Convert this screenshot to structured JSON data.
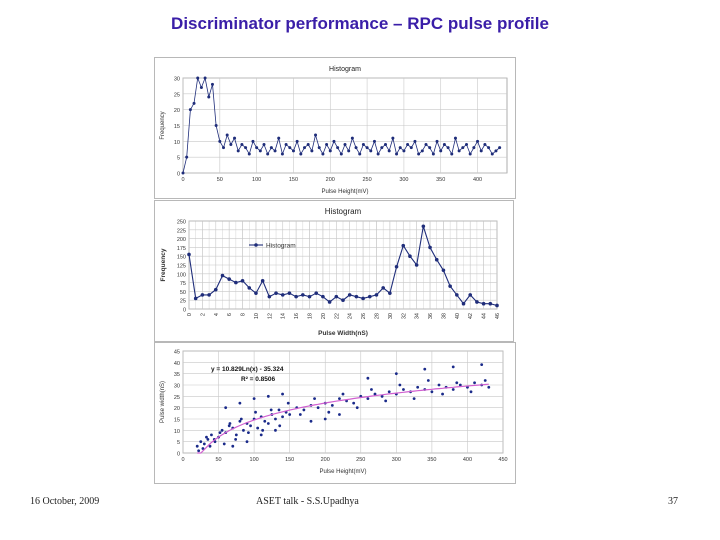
{
  "slide": {
    "title": "Discriminator performance – RPC pulse profile",
    "footer_left": "16 October, 2009",
    "footer_center": "ASET talk -  S.S.Upadhya",
    "footer_right": "37",
    "title_color": "#3a1ea8"
  },
  "chart_data": [
    {
      "type": "line",
      "title": "Histogram",
      "xlabel": "Pulse Height(mV)",
      "ylabel": "Frequency",
      "xlim": [
        0,
        440
      ],
      "ylim": [
        0,
        30
      ],
      "xticks": [
        0,
        50,
        100,
        150,
        200,
        250,
        300,
        350,
        400
      ],
      "yticks": [
        0,
        5,
        10,
        15,
        20,
        25,
        30
      ],
      "grid": true,
      "series": [
        {
          "color": "#1f2d7a",
          "x": [
            0,
            5,
            10,
            15,
            20,
            25,
            30,
            35,
            40,
            45,
            50,
            55,
            60,
            65,
            70,
            75,
            80,
            85,
            90,
            95,
            100,
            105,
            110,
            115,
            120,
            125,
            130,
            135,
            140,
            145,
            150,
            155,
            160,
            165,
            170,
            175,
            180,
            185,
            190,
            195,
            200,
            205,
            210,
            215,
            220,
            225,
            230,
            235,
            240,
            245,
            250,
            255,
            260,
            265,
            270,
            275,
            280,
            285,
            290,
            295,
            300,
            305,
            310,
            315,
            320,
            325,
            330,
            335,
            340,
            345,
            350,
            355,
            360,
            365,
            370,
            375,
            380,
            385,
            390,
            395,
            400,
            405,
            410,
            415,
            420,
            425,
            430
          ],
          "y": [
            0,
            5,
            20,
            22,
            30,
            27,
            30,
            24,
            28,
            15,
            10,
            8,
            12,
            9,
            11,
            7,
            9,
            8,
            6,
            10,
            8,
            7,
            9,
            6,
            8,
            7,
            11,
            6,
            9,
            8,
            7,
            10,
            6,
            8,
            9,
            7,
            12,
            8,
            6,
            9,
            7,
            10,
            8,
            6,
            9,
            7,
            11,
            8,
            6,
            9,
            8,
            7,
            10,
            6,
            8,
            9,
            7,
            11,
            6,
            8,
            7,
            9,
            8,
            10,
            6,
            7,
            9,
            8,
            6,
            10,
            7,
            9,
            8,
            6,
            11,
            7,
            8,
            9,
            6,
            8,
            10,
            7,
            9,
            8,
            6,
            7,
            8
          ]
        }
      ]
    },
    {
      "type": "line",
      "title": "Histogram",
      "xlabel": "Pulse Width(nS)",
      "ylabel": "Frequency",
      "ylim": [
        0,
        250
      ],
      "yticks": [
        0,
        25,
        50,
        75,
        100,
        125,
        150,
        175,
        200,
        225,
        250
      ],
      "grid": true,
      "legend": "top-left",
      "categories": [
        "0",
        "1",
        "2",
        "3",
        "4",
        "5",
        "6",
        "7",
        "8",
        "9",
        "10",
        "11",
        "12",
        "13",
        "14",
        "15",
        "16",
        "17",
        "18",
        "19",
        "20",
        "21",
        "22",
        "23",
        "24",
        "25",
        "26",
        "27",
        "28",
        "29",
        "30",
        "31",
        "32",
        "33",
        "34",
        "35",
        "36",
        "37",
        "38",
        "39",
        "40",
        "41",
        "42",
        "43",
        "44",
        "45",
        "46"
      ],
      "xtick_labels": [
        "0",
        "2",
        "4",
        "6",
        "8",
        "10",
        "12",
        "14",
        "16",
        "18",
        "20",
        "22",
        "24",
        "26",
        "28",
        "30",
        "32",
        "34",
        "36",
        "38",
        "40",
        "42",
        "44",
        "46"
      ],
      "series": [
        {
          "name": "Histogram",
          "color": "#1f2d7a",
          "values": [
            155,
            30,
            40,
            40,
            55,
            95,
            85,
            75,
            80,
            60,
            45,
            80,
            35,
            45,
            40,
            45,
            35,
            40,
            35,
            45,
            35,
            20,
            35,
            25,
            40,
            35,
            30,
            35,
            40,
            60,
            45,
            120,
            180,
            150,
            125,
            235,
            175,
            140,
            110,
            65,
            40,
            15,
            40,
            20,
            15,
            15,
            10
          ]
        }
      ]
    },
    {
      "type": "scatter",
      "xlabel": "Pulse Height(mV)",
      "ylabel": "Pulse width(nS)",
      "xlim": [
        0,
        450
      ],
      "ylim": [
        0,
        45
      ],
      "xticks": [
        0,
        50,
        100,
        150,
        200,
        250,
        300,
        350,
        400,
        450
      ],
      "yticks": [
        0,
        5,
        10,
        15,
        20,
        25,
        30,
        35,
        40,
        45
      ],
      "grid": true,
      "annotation_equation": "y = 10.829Ln(x) - 35.324",
      "annotation_r2": "R² = 0.8506",
      "trend": {
        "a": 10.829,
        "b": -35.324,
        "x_from": 20,
        "x_to": 430,
        "color": "#d060d0"
      },
      "series": [
        {
          "color": "#1a2a8a",
          "x": [
            20,
            25,
            30,
            35,
            40,
            45,
            50,
            55,
            60,
            65,
            70,
            75,
            80,
            85,
            90,
            95,
            100,
            105,
            110,
            115,
            120,
            125,
            130,
            135,
            140,
            145,
            150,
            160,
            170,
            180,
            190,
            200,
            210,
            220,
            230,
            240,
            250,
            260,
            270,
            280,
            290,
            300,
            310,
            320,
            330,
            340,
            350,
            360,
            370,
            380,
            390,
            400,
            410,
            420,
            430,
            22,
            28,
            33,
            38,
            44,
            52,
            58,
            66,
            74,
            82,
            92,
            102,
            112,
            124,
            136,
            148,
            165,
            185,
            205,
            225,
            245,
            265,
            285,
            305,
            325,
            345,
            365,
            385,
            405,
            425,
            60,
            80,
            100,
            120,
            140,
            70,
            90,
            110,
            130,
            180,
            200,
            220,
            260,
            300,
            340,
            380,
            420
          ],
          "y": [
            3,
            5,
            4,
            6,
            8,
            5,
            7,
            10,
            9,
            12,
            11,
            8,
            14,
            10,
            13,
            12,
            15,
            11,
            16,
            14,
            13,
            17,
            15,
            19,
            16,
            18,
            17,
            20,
            19,
            21,
            20,
            22,
            21,
            24,
            23,
            22,
            25,
            24,
            26,
            25,
            27,
            26,
            28,
            27,
            29,
            28,
            27,
            30,
            29,
            28,
            30,
            29,
            31,
            30,
            29,
            1,
            2,
            7,
            3,
            6,
            9,
            4,
            13,
            6,
            15,
            9,
            18,
            10,
            19,
            12,
            22,
            17,
            24,
            18,
            26,
            20,
            28,
            23,
            30,
            24,
            32,
            26,
            31,
            27,
            32,
            20,
            22,
            24,
            25,
            26,
            3,
            5,
            8,
            10,
            14,
            15,
            17,
            33,
            35,
            37,
            38,
            39
          ]
        }
      ]
    }
  ]
}
